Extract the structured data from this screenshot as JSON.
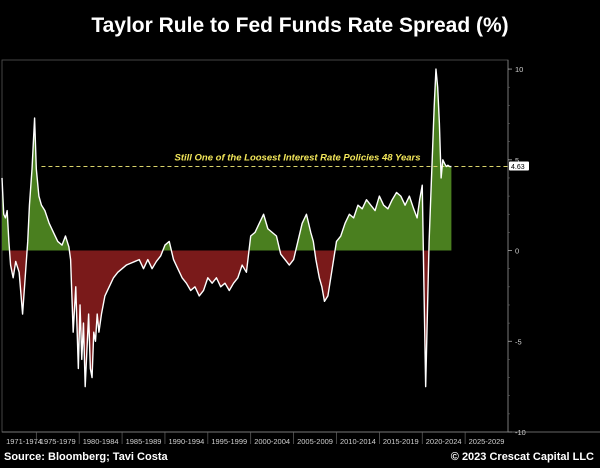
{
  "title": "Taylor Rule to Fed Funds Rate Spread (%)",
  "source": "Source: Bloomberg; Tavi Costa",
  "copyright": "© 2023 Crescat Capital LLC",
  "colors": {
    "positive": "#4a7f1f",
    "negative": "#7a1a1a",
    "line": "#ffffff",
    "annotation": "#f2e65a"
  },
  "chart_data": {
    "type": "area",
    "title": "Taylor Rule to Fed Funds Rate Spread (%)",
    "xlabel": "",
    "ylabel": "",
    "xlim": [
      1971,
      2030
    ],
    "ylim": [
      -10,
      10.5
    ],
    "yticks": [
      "10",
      "5",
      "0",
      "-5",
      "-10"
    ],
    "ytick_values": [
      10,
      5,
      0,
      -5,
      -10
    ],
    "xtick_labels": [
      "1971-1974",
      "1975-1979",
      "1980-1984",
      "1985-1989",
      "1990-1994",
      "1995-1999",
      "2000-2004",
      "2005-2009",
      "2010-2014",
      "2015-2019",
      "2020-2024",
      "2025-2029"
    ],
    "xtick_starts": [
      1970,
      1975,
      1980,
      1985,
      1990,
      1995,
      2000,
      2005,
      2010,
      2015,
      2020,
      2025
    ],
    "reference_line": {
      "value": 4.63,
      "label": "Still One of the Loosest Interest Rate Policies 48 Years"
    },
    "last_value_label": "4.63",
    "series": [
      {
        "x": [
          1971.0,
          1971.2,
          1971.4,
          1971.6,
          1971.8,
          1972.0,
          1972.3,
          1972.6,
          1973.0,
          1973.4,
          1973.7,
          1974.0,
          1974.2,
          1974.5,
          1974.8,
          1975.0,
          1975.3,
          1975.6,
          1976.0,
          1976.5,
          1977.0,
          1977.5,
          1978.0,
          1978.4,
          1978.8,
          1979.0,
          1979.3,
          1979.6,
          1979.9,
          1980.1,
          1980.3,
          1980.5,
          1980.7,
          1980.9,
          1981.1,
          1981.3,
          1981.5,
          1981.7,
          1981.9,
          1982.1,
          1982.3,
          1982.6,
          1983.0,
          1983.5,
          1984.0,
          1984.5,
          1985.0,
          1985.5,
          1986.0,
          1986.5,
          1987.0,
          1987.5,
          1988.0,
          1988.5,
          1989.0,
          1989.5,
          1990.0,
          1990.5,
          1991.0,
          1991.5,
          1992.0,
          1992.5,
          1993.0,
          1993.5,
          1994.0,
          1994.5,
          1995.0,
          1995.5,
          1996.0,
          1996.5,
          1997.0,
          1997.5,
          1998.0,
          1998.5,
          1999.0,
          1999.5,
          2000.0,
          2000.5,
          2001.0,
          2001.5,
          2002.0,
          2002.5,
          2003.0,
          2003.5,
          2004.0,
          2004.5,
          2005.0,
          2005.5,
          2006.0,
          2006.5,
          2007.0,
          2007.3,
          2007.6,
          2008.0,
          2008.3,
          2008.6,
          2009.0,
          2009.5,
          2010.0,
          2010.5,
          2011.0,
          2011.5,
          2012.0,
          2012.5,
          2013.0,
          2013.5,
          2014.0,
          2014.5,
          2015.0,
          2015.5,
          2016.0,
          2016.5,
          2017.0,
          2017.5,
          2018.0,
          2018.5,
          2019.0,
          2019.4,
          2019.7,
          2020.0,
          2020.2,
          2020.4,
          2020.6,
          2020.8,
          2021.0,
          2021.2,
          2021.4,
          2021.6,
          2021.8,
          2022.0,
          2022.2,
          2022.4,
          2022.6,
          2022.8,
          2023.0,
          2023.2,
          2023.4
        ],
        "y": [
          4.0,
          2.0,
          1.8,
          2.2,
          0.5,
          -0.8,
          -1.5,
          -0.6,
          -1.2,
          -3.5,
          -1.5,
          0.5,
          2.5,
          4.5,
          7.3,
          4.5,
          3.0,
          2.5,
          2.2,
          1.5,
          1.0,
          0.5,
          0.3,
          0.8,
          0.2,
          -0.5,
          -4.5,
          -2.0,
          -6.5,
          -3.0,
          -6.0,
          -4.0,
          -7.5,
          -5.5,
          -3.5,
          -6.5,
          -7.0,
          -4.5,
          -5.0,
          -3.5,
          -4.5,
          -3.5,
          -2.5,
          -2.0,
          -1.5,
          -1.2,
          -1.0,
          -0.8,
          -0.7,
          -0.6,
          -0.5,
          -1.0,
          -0.5,
          -1.0,
          -0.6,
          -0.3,
          0.3,
          0.5,
          -0.5,
          -1.0,
          -1.5,
          -1.8,
          -2.2,
          -2.0,
          -2.5,
          -2.2,
          -1.5,
          -1.8,
          -1.5,
          -2.0,
          -1.8,
          -2.2,
          -1.8,
          -1.5,
          -0.8,
          -1.2,
          0.8,
          1.0,
          1.5,
          2.0,
          1.2,
          1.0,
          0.8,
          -0.2,
          -0.5,
          -0.8,
          -0.5,
          0.5,
          1.5,
          2.0,
          1.0,
          0.5,
          -0.5,
          -1.5,
          -2.0,
          -2.8,
          -2.5,
          -1.0,
          0.5,
          0.8,
          1.5,
          2.0,
          1.8,
          2.5,
          2.3,
          2.8,
          2.5,
          2.2,
          3.0,
          2.5,
          2.3,
          2.8,
          3.2,
          3.0,
          2.5,
          3.0,
          2.3,
          1.8,
          2.8,
          3.6,
          -2.0,
          -7.5,
          -3.5,
          0.5,
          3.0,
          5.5,
          8.0,
          10.0,
          9.0,
          7.0,
          4.0,
          5.0,
          4.8,
          4.63,
          4.7,
          4.63,
          4.63
        ]
      }
    ]
  }
}
